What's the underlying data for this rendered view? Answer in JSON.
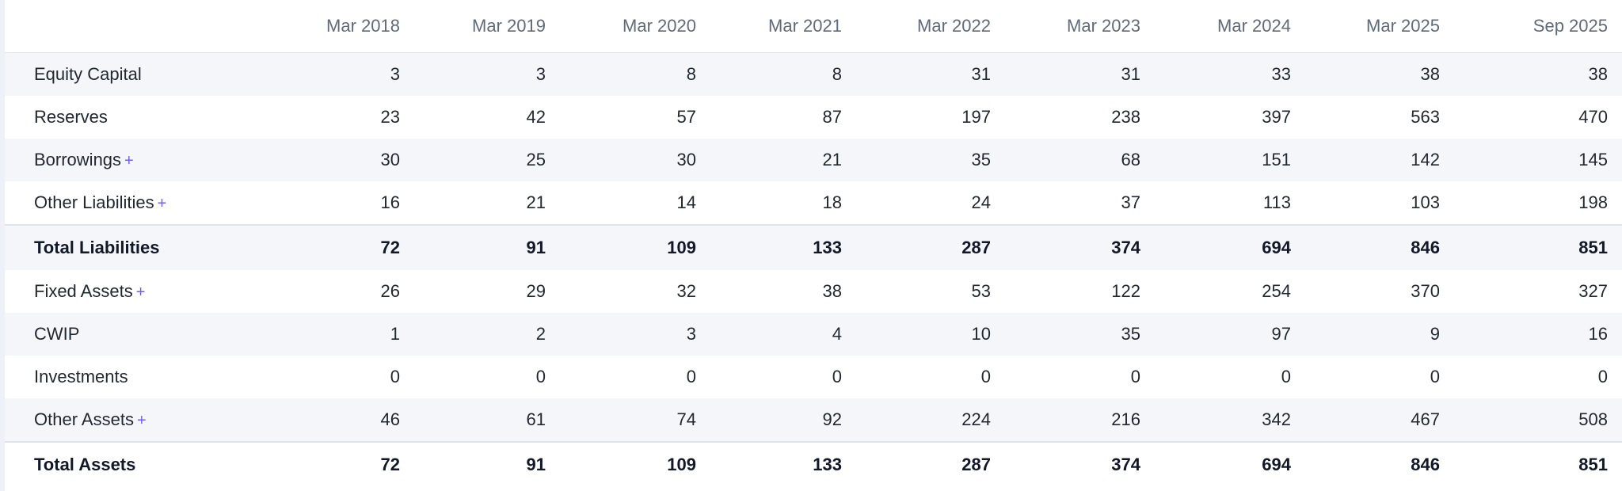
{
  "columns": [
    "Mar 2018",
    "Mar 2019",
    "Mar 2020",
    "Mar 2021",
    "Mar 2022",
    "Mar 2023",
    "Mar 2024",
    "Mar 2025",
    "Sep 2025"
  ],
  "expand_symbol": "+",
  "rows": [
    {
      "label": "Equity Capital",
      "values": [
        "3",
        "3",
        "8",
        "8",
        "31",
        "31",
        "33",
        "38",
        "38"
      ]
    },
    {
      "label": "Reserves",
      "values": [
        "23",
        "42",
        "57",
        "87",
        "197",
        "238",
        "397",
        "563",
        "470"
      ]
    },
    {
      "label": "Borrowings",
      "values": [
        "30",
        "25",
        "30",
        "21",
        "35",
        "68",
        "151",
        "142",
        "145"
      ]
    },
    {
      "label": "Other Liabilities",
      "values": [
        "16",
        "21",
        "14",
        "18",
        "24",
        "37",
        "113",
        "103",
        "198"
      ]
    },
    {
      "label": "Total Liabilities",
      "values": [
        "72",
        "91",
        "109",
        "133",
        "287",
        "374",
        "694",
        "846",
        "851"
      ]
    },
    {
      "label": "Fixed Assets",
      "values": [
        "26",
        "29",
        "32",
        "38",
        "53",
        "122",
        "254",
        "370",
        "327"
      ]
    },
    {
      "label": "CWIP",
      "values": [
        "1",
        "2",
        "3",
        "4",
        "10",
        "35",
        "97",
        "9",
        "16"
      ]
    },
    {
      "label": "Investments",
      "values": [
        "0",
        "0",
        "0",
        "0",
        "0",
        "0",
        "0",
        "0",
        "0"
      ]
    },
    {
      "label": "Other Assets",
      "values": [
        "46",
        "61",
        "74",
        "92",
        "224",
        "216",
        "342",
        "467",
        "508"
      ]
    },
    {
      "label": "Total Assets",
      "values": [
        "72",
        "91",
        "109",
        "133",
        "287",
        "374",
        "694",
        "846",
        "851"
      ]
    }
  ]
}
